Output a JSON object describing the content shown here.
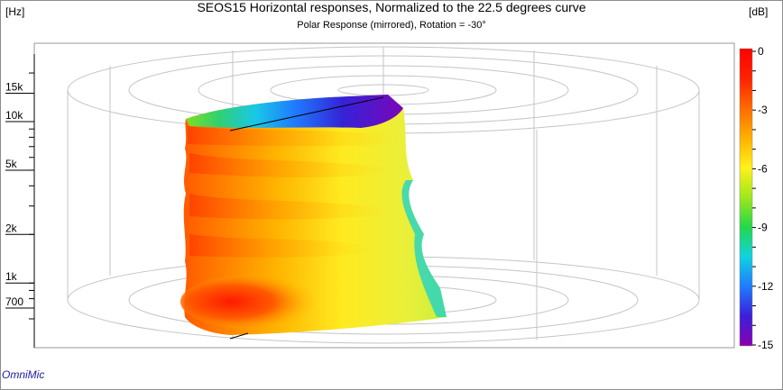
{
  "title": "SEOS15 Horizontal responses, Normalized to the 22.5 degrees curve",
  "subtitle": "Polar Response (mirrored), Rotation = -30°",
  "left_unit": "[Hz]",
  "right_unit": "[dB]",
  "brand": "OmniMic",
  "chart_data": {
    "type": "heatmap",
    "title": "SEOS15 Horizontal responses, Normalized to the 22.5 degrees curve",
    "subtitle": "Polar Response (mirrored), Rotation = -30°",
    "ylabel": "[Hz]",
    "colorbar_label": "[dB]",
    "y_scale": "log",
    "ylim": [
      500,
      20000
    ],
    "y_ticks": [
      {
        "value": 700,
        "label": "700"
      },
      {
        "value": 1000,
        "label": "1k"
      },
      {
        "value": 2000,
        "label": "2k"
      },
      {
        "value": 5000,
        "label": "5k"
      },
      {
        "value": 10000,
        "label": "10k"
      },
      {
        "value": 15000,
        "label": "15k"
      }
    ],
    "colorbar_range": [
      -15,
      0
    ],
    "colorbar_ticks": [
      {
        "value": 0,
        "label": "0"
      },
      {
        "value": -3,
        "label": "-3"
      },
      {
        "value": -6,
        "label": "-6"
      },
      {
        "value": -9,
        "label": "-9"
      },
      {
        "value": -12,
        "label": "-12"
      },
      {
        "value": -15,
        "label": "-15"
      }
    ],
    "colormap": [
      "#8b00b0",
      "#3a1fd9",
      "#1f7bff",
      "#10d3e0",
      "#22d84a",
      "#9fe81a",
      "#fff21a",
      "#ffb000",
      "#ff6a00",
      "#ff2200",
      "#ff0000"
    ]
  }
}
